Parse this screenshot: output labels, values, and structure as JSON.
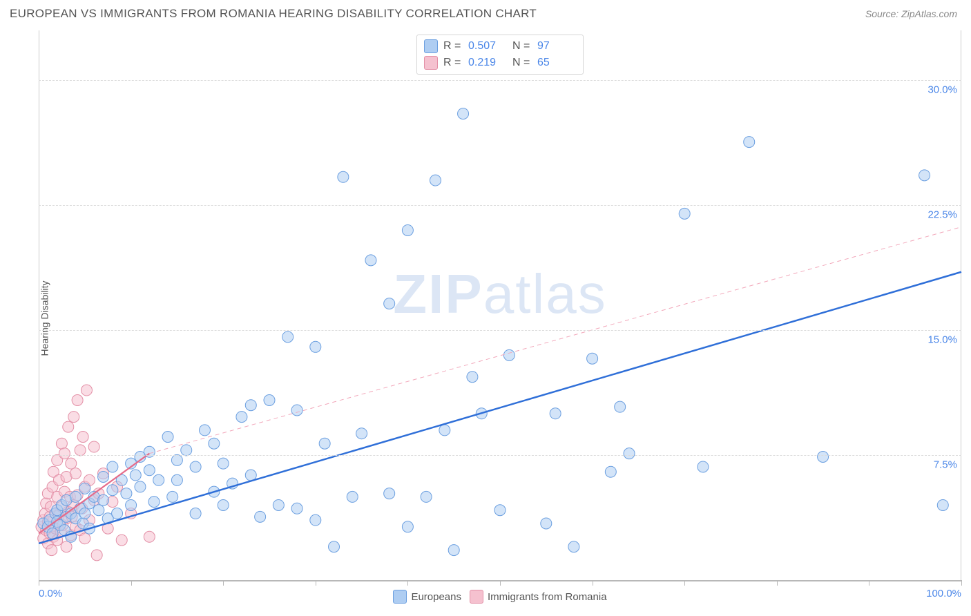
{
  "header": {
    "title": "EUROPEAN VS IMMIGRANTS FROM ROMANIA HEARING DISABILITY CORRELATION CHART",
    "source": "Source: ZipAtlas.com"
  },
  "chart": {
    "type": "scatter",
    "ylabel": "Hearing Disability",
    "watermark_part1": "ZIP",
    "watermark_part2": "atlas",
    "background_color": "#ffffff",
    "grid_color": "#dcdcdc",
    "axis_color": "#b8b8b8",
    "tick_label_color": "#4a86e8",
    "xlim": [
      0,
      100
    ],
    "ylim": [
      0,
      33
    ],
    "xticks": [
      0,
      10,
      20,
      30,
      40,
      50,
      60,
      70,
      80,
      90,
      100
    ],
    "xtick_labels": {
      "0": "0.0%",
      "100": "100.0%"
    },
    "yticks": [
      7.5,
      15.0,
      22.5,
      30.0
    ],
    "ytick_labels": [
      "7.5%",
      "15.0%",
      "22.5%",
      "30.0%"
    ],
    "marker_radius": 8,
    "marker_opacity": 0.55,
    "marker_stroke_width": 1,
    "series": [
      {
        "name": "Europeans",
        "fill_color": "#aecdf2",
        "stroke_color": "#6b9fe0",
        "trend_line_color": "#2f6fd8",
        "trend_line_width": 2.5,
        "trend_line_dash": "none",
        "trend_line": {
          "x1": 0,
          "y1": 2.2,
          "x2": 100,
          "y2": 18.5
        },
        "extrap_line": null,
        "legend_stats": {
          "R_label": "R =",
          "R": "0.507",
          "N_label": "N =",
          "N": "97"
        },
        "points": [
          [
            0.5,
            3.4
          ],
          [
            1,
            3.2
          ],
          [
            1.2,
            3.6
          ],
          [
            1.5,
            2.8
          ],
          [
            1.8,
            4.0
          ],
          [
            2,
            3.5
          ],
          [
            2,
            4.2
          ],
          [
            2.3,
            3.3
          ],
          [
            2.5,
            4.5
          ],
          [
            2.8,
            3.0
          ],
          [
            3,
            3.8
          ],
          [
            3,
            4.8
          ],
          [
            3.5,
            2.6
          ],
          [
            3.5,
            4.0
          ],
          [
            4,
            3.7
          ],
          [
            4,
            5.0
          ],
          [
            4.5,
            4.3
          ],
          [
            4.8,
            3.4
          ],
          [
            5,
            5.5
          ],
          [
            5,
            4.0
          ],
          [
            5.5,
            3.1
          ],
          [
            5.5,
            4.6
          ],
          [
            6,
            5.0
          ],
          [
            6.5,
            4.2
          ],
          [
            7,
            4.8
          ],
          [
            7,
            6.2
          ],
          [
            7.5,
            3.7
          ],
          [
            8,
            5.4
          ],
          [
            8,
            6.8
          ],
          [
            8.5,
            4.0
          ],
          [
            9,
            6.0
          ],
          [
            9.5,
            5.2
          ],
          [
            10,
            7.0
          ],
          [
            10,
            4.5
          ],
          [
            10.5,
            6.3
          ],
          [
            11,
            7.4
          ],
          [
            11,
            5.6
          ],
          [
            12,
            6.6
          ],
          [
            12,
            7.7
          ],
          [
            12.5,
            4.7
          ],
          [
            13,
            6.0
          ],
          [
            14,
            8.6
          ],
          [
            14.5,
            5.0
          ],
          [
            15,
            7.2
          ],
          [
            15,
            6.0
          ],
          [
            16,
            7.8
          ],
          [
            17,
            4.0
          ],
          [
            17,
            6.8
          ],
          [
            18,
            9.0
          ],
          [
            19,
            5.3
          ],
          [
            19,
            8.2
          ],
          [
            20,
            7.0
          ],
          [
            20,
            4.5
          ],
          [
            21,
            5.8
          ],
          [
            22,
            9.8
          ],
          [
            23,
            10.5
          ],
          [
            23,
            6.3
          ],
          [
            24,
            3.8
          ],
          [
            25,
            10.8
          ],
          [
            26,
            4.5
          ],
          [
            27,
            14.6
          ],
          [
            28,
            4.3
          ],
          [
            28,
            10.2
          ],
          [
            30,
            3.6
          ],
          [
            30,
            14.0
          ],
          [
            31,
            8.2
          ],
          [
            32,
            2.0
          ],
          [
            33,
            24.2
          ],
          [
            34,
            5.0
          ],
          [
            35,
            8.8
          ],
          [
            36,
            19.2
          ],
          [
            38,
            5.2
          ],
          [
            38,
            16.6
          ],
          [
            40,
            3.2
          ],
          [
            40,
            21.0
          ],
          [
            42,
            5.0
          ],
          [
            43,
            24.0
          ],
          [
            44,
            9.0
          ],
          [
            45,
            1.8
          ],
          [
            46,
            28.0
          ],
          [
            47,
            12.2
          ],
          [
            48,
            10.0
          ],
          [
            50,
            4.2
          ],
          [
            51,
            13.5
          ],
          [
            55,
            3.4
          ],
          [
            56,
            10.0
          ],
          [
            58,
            2.0
          ],
          [
            60,
            13.3
          ],
          [
            62,
            6.5
          ],
          [
            63,
            10.4
          ],
          [
            64,
            7.6
          ],
          [
            70,
            22.0
          ],
          [
            72,
            6.8
          ],
          [
            77,
            26.3
          ],
          [
            85,
            7.4
          ],
          [
            96,
            24.3
          ],
          [
            98,
            4.5
          ]
        ]
      },
      {
        "name": "Immigrants from Romania",
        "fill_color": "#f5c1cf",
        "stroke_color": "#e38fa6",
        "trend_line_color": "#e56b8a",
        "trend_line_width": 2.2,
        "trend_line_dash": "none",
        "trend_line": {
          "x1": 0,
          "y1": 2.8,
          "x2": 12,
          "y2": 7.6
        },
        "extrap_line": {
          "x1": 12,
          "y1": 7.6,
          "x2": 100,
          "y2": 21.2,
          "color": "#f2a7ba",
          "width": 1,
          "dash": "6,5"
        },
        "legend_stats": {
          "R_label": "R =",
          "R": "0.219",
          "N_label": "N =",
          "N": "65"
        },
        "points": [
          [
            0.3,
            3.2
          ],
          [
            0.5,
            3.6
          ],
          [
            0.5,
            2.5
          ],
          [
            0.7,
            4.0
          ],
          [
            0.8,
            3.0
          ],
          [
            0.8,
            4.6
          ],
          [
            1,
            3.5
          ],
          [
            1,
            2.2
          ],
          [
            1,
            5.2
          ],
          [
            1.2,
            3.8
          ],
          [
            1.2,
            2.8
          ],
          [
            1.3,
            4.4
          ],
          [
            1.4,
            1.8
          ],
          [
            1.5,
            3.2
          ],
          [
            1.5,
            5.6
          ],
          [
            1.6,
            6.5
          ],
          [
            1.6,
            2.6
          ],
          [
            1.8,
            4.0
          ],
          [
            1.8,
            3.1
          ],
          [
            2,
            5.0
          ],
          [
            2,
            2.4
          ],
          [
            2,
            7.2
          ],
          [
            2.2,
            3.9
          ],
          [
            2.2,
            6.0
          ],
          [
            2.4,
            2.9
          ],
          [
            2.5,
            4.4
          ],
          [
            2.5,
            8.2
          ],
          [
            2.6,
            3.3
          ],
          [
            2.8,
            5.3
          ],
          [
            2.8,
            7.6
          ],
          [
            3,
            3.7
          ],
          [
            3,
            2.0
          ],
          [
            3,
            6.2
          ],
          [
            3.2,
            4.1
          ],
          [
            3.2,
            9.2
          ],
          [
            3.4,
            5.0
          ],
          [
            3.5,
            2.7
          ],
          [
            3.5,
            7.0
          ],
          [
            3.6,
            3.8
          ],
          [
            3.8,
            9.8
          ],
          [
            3.8,
            4.5
          ],
          [
            4,
            6.4
          ],
          [
            4,
            3.2
          ],
          [
            4.2,
            10.8
          ],
          [
            4.2,
            5.1
          ],
          [
            4.5,
            7.8
          ],
          [
            4.5,
            3.0
          ],
          [
            4.7,
            4.3
          ],
          [
            4.8,
            8.6
          ],
          [
            5,
            5.6
          ],
          [
            5,
            2.5
          ],
          [
            5.2,
            11.4
          ],
          [
            5.5,
            6.0
          ],
          [
            5.5,
            3.6
          ],
          [
            6,
            4.8
          ],
          [
            6,
            8.0
          ],
          [
            6.3,
            1.5
          ],
          [
            6.5,
            5.2
          ],
          [
            7,
            6.4
          ],
          [
            7.5,
            3.1
          ],
          [
            8,
            4.7
          ],
          [
            8.5,
            5.6
          ],
          [
            9,
            2.4
          ],
          [
            10,
            4.0
          ],
          [
            12,
            2.6
          ]
        ]
      }
    ],
    "legend_bottom": [
      {
        "swatch_fill": "#aecdf2",
        "swatch_stroke": "#6b9fe0",
        "label": "Europeans"
      },
      {
        "swatch_fill": "#f5c1cf",
        "swatch_stroke": "#e38fa6",
        "label": "Immigrants from Romania"
      }
    ]
  }
}
